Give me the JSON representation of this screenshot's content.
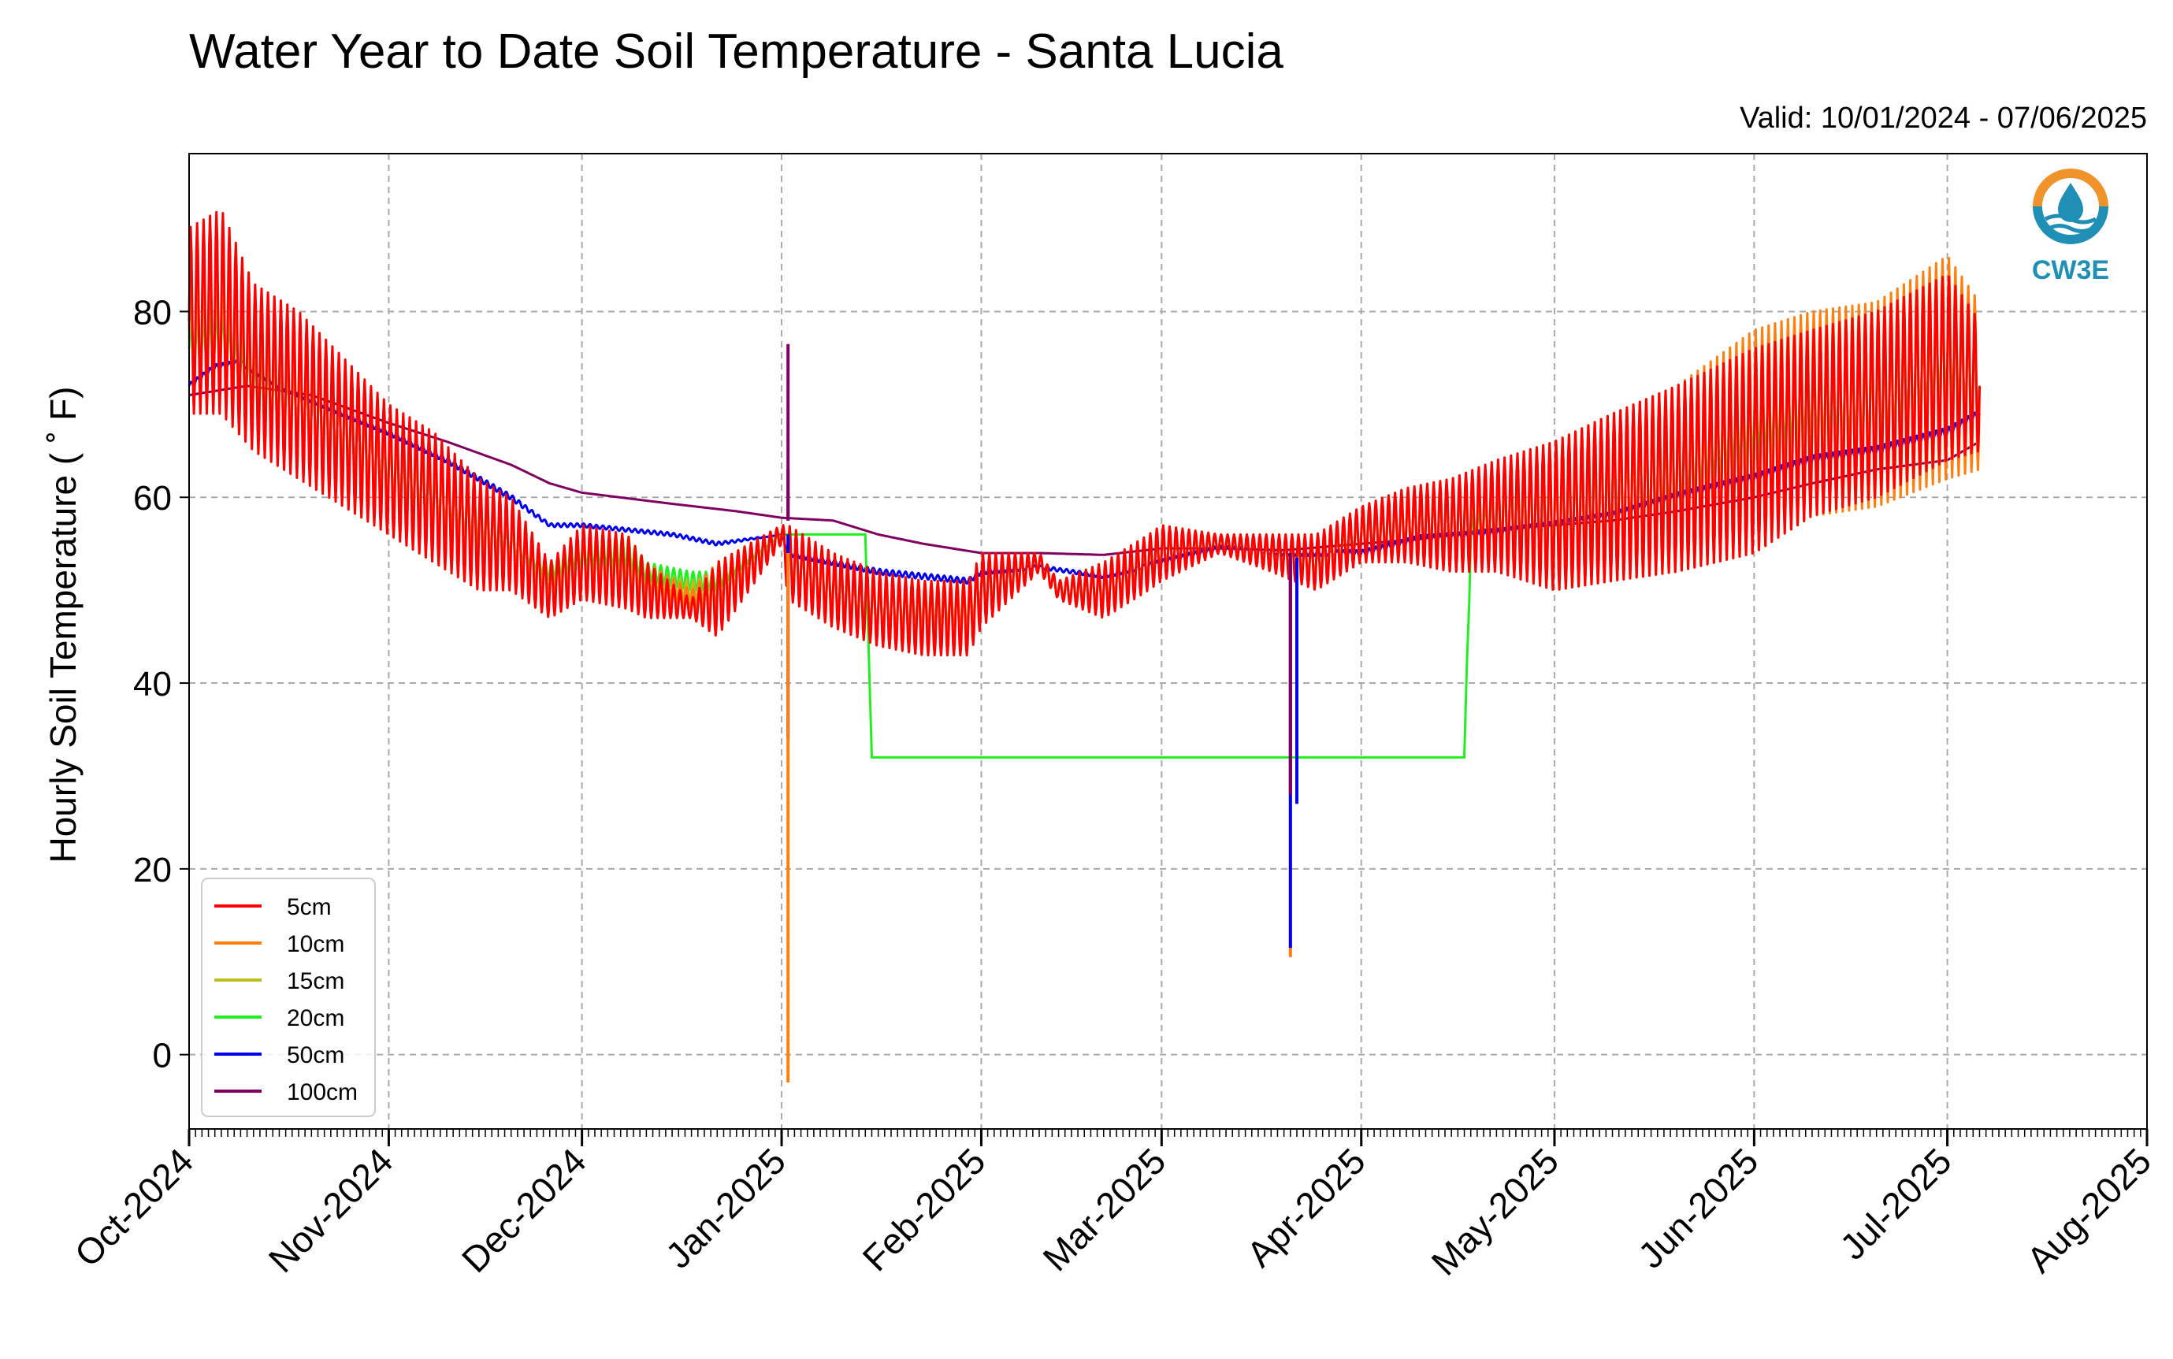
{
  "chart_data": {
    "type": "line",
    "title": "Water Year to Date Soil Temperature - Santa Lucia",
    "subtitle": "Valid: 10/01/2024 - 07/06/2025",
    "ylabel": "Hourly Soil Temperature ( ˚ F)",
    "xlabel": "",
    "ylim": [
      -8,
      97
    ],
    "xlim": [
      "2024-10-01",
      "2025-08-01"
    ],
    "grid": true,
    "legend_position": "lower-left",
    "yticks": [
      0,
      20,
      40,
      60,
      80
    ],
    "ytick_labels": [
      "0",
      "20",
      "40",
      "60",
      "80"
    ],
    "xticks": [
      "2024-10-01",
      "2024-11-01",
      "2024-12-01",
      "2025-01-01",
      "2025-02-01",
      "2025-03-01",
      "2025-04-01",
      "2025-05-01",
      "2025-06-01",
      "2025-07-01",
      "2025-08-01"
    ],
    "xtick_labels": [
      "Oct-2024",
      "Nov-2024",
      "Dec-2024",
      "Jan-2025",
      "Feb-2025",
      "Mar-2025",
      "Apr-2025",
      "May-2025",
      "Jun-2025",
      "Jul-2025",
      "Aug-2025"
    ],
    "series": [
      {
        "name": "5cm",
        "color": "#ff0000",
        "x": [
          "2024-10-01",
          "2024-10-06",
          "2024-10-11",
          "2024-10-18",
          "2024-10-25",
          "2024-11-01",
          "2024-11-08",
          "2024-11-15",
          "2024-11-20",
          "2024-11-26",
          "2024-12-01",
          "2024-12-08",
          "2024-12-11",
          "2024-12-18",
          "2024-12-22",
          "2025-01-01",
          "2025-01-02",
          "2025-01-09",
          "2025-01-16",
          "2025-01-23",
          "2025-01-30",
          "2025-02-01",
          "2025-02-10",
          "2025-02-13",
          "2025-02-20",
          "2025-02-27",
          "2025-03-01",
          "2025-03-10",
          "2025-03-18",
          "2025-03-25",
          "2025-04-01",
          "2025-04-08",
          "2025-04-15",
          "2025-04-22",
          "2025-05-01",
          "2025-05-10",
          "2025-05-20",
          "2025-06-01",
          "2025-06-10",
          "2025-06-20",
          "2025-07-01",
          "2025-07-06"
        ],
        "mean": [
          79,
          80,
          74,
          71,
          67,
          63,
          60,
          56,
          55,
          50,
          53,
          52,
          50,
          48,
          49,
          56,
          53,
          50,
          48,
          47,
          47,
          50,
          53,
          50,
          50,
          53,
          54,
          55,
          54,
          53,
          56,
          57,
          57,
          58,
          58,
          60,
          62,
          65,
          68,
          70,
          74,
          72
        ],
        "amp": [
          10,
          11,
          9,
          9,
          8,
          7,
          7,
          6,
          5,
          3,
          4,
          4,
          3,
          1,
          4,
          1,
          4,
          4,
          4,
          4,
          4,
          4,
          1,
          1,
          3,
          3,
          3,
          1,
          2,
          3,
          3,
          4,
          5,
          6,
          8,
          9,
          10,
          11,
          10,
          10,
          10,
          7
        ]
      },
      {
        "name": "10cm",
        "color": "#ff7f0e",
        "x": [
          "2024-10-01",
          "2024-10-06",
          "2024-10-11",
          "2024-10-18",
          "2024-10-25",
          "2024-11-01",
          "2024-11-08",
          "2024-11-15",
          "2024-11-20",
          "2024-11-26",
          "2024-12-01",
          "2024-12-08",
          "2024-12-11",
          "2024-12-18",
          "2024-12-22",
          "2025-01-01",
          "2025-01-02",
          "2025-01-09",
          "2025-01-16",
          "2025-01-23",
          "2025-01-30",
          "2025-02-01",
          "2025-02-10",
          "2025-02-13",
          "2025-02-20",
          "2025-02-27",
          "2025-03-01",
          "2025-03-10",
          "2025-03-18",
          "2025-03-25",
          "2025-04-01",
          "2025-04-08",
          "2025-04-15",
          "2025-04-22",
          "2025-05-01",
          "2025-05-10",
          "2025-05-20",
          "2025-06-01",
          "2025-06-10",
          "2025-06-20",
          "2025-07-01",
          "2025-07-06"
        ],
        "mean": [
          78,
          79,
          73,
          70,
          67,
          63,
          60,
          57,
          55,
          51,
          53,
          52,
          51,
          49,
          50,
          56,
          53,
          50,
          48,
          48,
          48,
          50,
          53,
          50,
          50,
          53,
          54,
          55,
          54,
          53,
          56,
          57,
          57,
          58,
          58,
          60,
          62,
          66,
          69,
          70,
          74,
          72
        ],
        "amp": [
          6,
          7,
          6,
          5,
          5,
          5,
          4,
          4,
          3,
          2,
          3,
          3,
          2,
          1,
          3,
          1,
          3,
          3,
          3,
          3,
          3,
          3,
          1,
          1,
          2,
          2,
          2,
          1,
          1,
          2,
          2,
          3,
          4,
          5,
          8,
          9,
          10,
          12,
          11,
          11,
          12,
          9
        ]
      },
      {
        "name": "15cm",
        "color": "#bcbd22",
        "x": [
          "2024-10-01",
          "2024-10-06",
          "2024-10-11",
          "2024-10-18",
          "2024-10-25",
          "2024-11-01",
          "2024-11-08",
          "2024-11-15",
          "2024-11-20",
          "2024-11-26",
          "2024-12-01",
          "2024-12-08",
          "2024-12-11",
          "2024-12-18",
          "2024-12-22",
          "2025-01-01",
          "2025-01-02",
          "2025-01-09",
          "2025-01-16",
          "2025-01-23",
          "2025-01-30",
          "2025-02-01",
          "2025-02-10",
          "2025-02-13",
          "2025-02-20",
          "2025-02-27",
          "2025-03-01",
          "2025-03-10",
          "2025-03-18",
          "2025-03-25",
          "2025-04-01",
          "2025-04-08",
          "2025-04-15",
          "2025-04-22",
          "2025-05-01",
          "2025-05-10",
          "2025-05-20",
          "2025-06-01",
          "2025-06-10",
          "2025-06-20",
          "2025-07-01",
          "2025-07-06"
        ],
        "mean": [
          77,
          78,
          73,
          70,
          67,
          63,
          60,
          57,
          55,
          51,
          53,
          53,
          51,
          50,
          50,
          56,
          53,
          50,
          48,
          48,
          48,
          50,
          53,
          50,
          50,
          53,
          54,
          55,
          54,
          53,
          56,
          57,
          57,
          58,
          58,
          60,
          62,
          66,
          69,
          70,
          74,
          72
        ],
        "amp": [
          4,
          4,
          4,
          3,
          3,
          3,
          3,
          3,
          2,
          1,
          2,
          2,
          1,
          1,
          2,
          1,
          2,
          2,
          2,
          2,
          2,
          2,
          1,
          1,
          1,
          1,
          1,
          1,
          1,
          1,
          2,
          2,
          3,
          3,
          5,
          6,
          6,
          6,
          6,
          6,
          6,
          4
        ]
      },
      {
        "name": "20cm",
        "color": "#22ee22",
        "x": [
          "2024-10-01",
          "2024-10-06",
          "2024-10-11",
          "2024-10-18",
          "2024-10-25",
          "2024-11-01",
          "2024-11-08",
          "2024-11-15",
          "2024-11-20",
          "2024-11-26",
          "2024-12-01",
          "2024-12-08",
          "2024-12-11",
          "2024-12-18",
          "2024-12-22",
          "2025-01-01",
          "2025-01-02",
          "2025-01-09",
          "2025-01-14",
          "2025-01-15",
          "2025-04-17",
          "2025-04-18",
          "2025-04-22",
          "2025-05-01",
          "2025-05-10",
          "2025-05-20",
          "2025-06-01",
          "2025-06-10",
          "2025-06-20",
          "2025-07-01",
          "2025-07-06"
        ],
        "mean": [
          76,
          77,
          72,
          70,
          67,
          63,
          60,
          57,
          55,
          52,
          54,
          54,
          52,
          51,
          51,
          56,
          56,
          56,
          56,
          32,
          32,
          56,
          58,
          58,
          60,
          63,
          68,
          70,
          70,
          75,
          72
        ],
        "amp": [
          3,
          3,
          3,
          3,
          3,
          2,
          2,
          2,
          1,
          1,
          2,
          2,
          1,
          1,
          1,
          0,
          0,
          0,
          0,
          0,
          0,
          2,
          3,
          4,
          5,
          5,
          4,
          4,
          4,
          4,
          3
        ]
      },
      {
        "name": "50cm",
        "color": "#0000ee",
        "x": [
          "2024-10-01",
          "2024-10-05",
          "2024-10-09",
          "2024-10-15",
          "2024-10-25",
          "2024-11-01",
          "2024-11-10",
          "2024-11-20",
          "2024-11-26",
          "2024-12-01",
          "2024-12-15",
          "2024-12-22",
          "2025-01-01",
          "2025-01-02",
          "2025-01-09",
          "2025-01-16",
          "2025-01-23",
          "2025-01-30",
          "2025-02-01",
          "2025-02-10",
          "2025-02-20",
          "2025-03-01",
          "2025-03-10",
          "2025-03-20",
          "2025-04-01",
          "2025-04-10",
          "2025-04-20",
          "2025-05-01",
          "2025-05-10",
          "2025-05-20",
          "2025-06-01",
          "2025-06-10",
          "2025-06-20",
          "2025-07-01",
          "2025-07-06"
        ],
        "mean": [
          72,
          74,
          74.5,
          72,
          69,
          67,
          64,
          60,
          57,
          57,
          56,
          55,
          56,
          54,
          53,
          52,
          51.5,
          51,
          52,
          52.5,
          51.5,
          53,
          54.5,
          54,
          54,
          55.5,
          56,
          57,
          58,
          60,
          62,
          64,
          65,
          67,
          69
        ],
        "amp": [
          0.3,
          0.3,
          0.3,
          0.3,
          0.3,
          0.3,
          0.3,
          0.3,
          0.2,
          0.2,
          0.2,
          0.2,
          0,
          0.3,
          0.3,
          0.3,
          0.3,
          0.3,
          0.3,
          0.2,
          0.2,
          0.3,
          0.3,
          0.3,
          0.3,
          0.4,
          0.4,
          0.4,
          0.4,
          0.5,
          0.5,
          0.5,
          0.5,
          0.5,
          0.4
        ]
      },
      {
        "name": "100cm",
        "color": "#800060",
        "x": [
          "2024-10-01",
          "2024-10-10",
          "2024-10-20",
          "2024-11-01",
          "2024-11-10",
          "2024-11-20",
          "2024-11-26",
          "2024-12-01",
          "2024-12-15",
          "2024-12-25",
          "2025-01-01",
          "2025-01-09",
          "2025-01-16",
          "2025-01-23",
          "2025-02-01",
          "2025-02-10",
          "2025-02-20",
          "2025-03-01",
          "2025-03-10",
          "2025-03-20",
          "2025-04-01",
          "2025-04-10",
          "2025-04-20",
          "2025-05-01",
          "2025-05-10",
          "2025-05-20",
          "2025-06-01",
          "2025-06-10",
          "2025-06-20",
          "2025-07-01",
          "2025-07-06"
        ],
        "mean": [
          71,
          72,
          71,
          68,
          66,
          63.5,
          61.5,
          60.5,
          59.3,
          58.5,
          57.8,
          57.5,
          56,
          55,
          54,
          54,
          53.8,
          54.5,
          54.5,
          54.3,
          55,
          55.5,
          56.5,
          57,
          57.5,
          58.5,
          60,
          61.5,
          63,
          64,
          66
        ],
        "amp": [
          0,
          0,
          0,
          0,
          0,
          0,
          0,
          0,
          0,
          0,
          0,
          0,
          0,
          0,
          0,
          0,
          0,
          0,
          0,
          0,
          0,
          0,
          0,
          0,
          0,
          0,
          0,
          0,
          0,
          0,
          0
        ]
      }
    ],
    "spikes": [
      {
        "series": "100cm",
        "date": "2025-01-02",
        "values": [
          76.5,
          57.5
        ]
      },
      {
        "series": "100cm",
        "date": "2025-01-02",
        "values": [
          57.5,
          63
        ]
      },
      {
        "series": "50cm",
        "date": "2025-01-02",
        "values": [
          56,
          34
        ]
      },
      {
        "series": "10cm",
        "date": "2025-01-02",
        "values": [
          54,
          -3
        ]
      },
      {
        "series": "10cm",
        "date": "2025-03-21",
        "values": [
          53,
          10.5
        ]
      },
      {
        "series": "50cm",
        "date": "2025-03-21",
        "values": [
          53.5,
          11.5
        ]
      },
      {
        "series": "50cm",
        "date": "2025-03-22",
        "values": [
          53.5,
          27
        ]
      },
      {
        "series": "100cm",
        "date": "2025-03-21",
        "values": [
          54,
          28
        ]
      }
    ]
  },
  "legend": {
    "items": [
      {
        "label": "5cm",
        "color": "#ff0000"
      },
      {
        "label": "10cm",
        "color": "#ff7f0e"
      },
      {
        "label": "15cm",
        "color": "#bcbd22"
      },
      {
        "label": "20cm",
        "color": "#22ee22"
      },
      {
        "label": "50cm",
        "color": "#0000ee"
      },
      {
        "label": "100cm",
        "color": "#800060"
      }
    ]
  },
  "logo": {
    "text": "CW3E",
    "icon": "water-drop-logo-icon",
    "color_primary": "#1f8fb5",
    "color_accent": "#f0932b"
  }
}
